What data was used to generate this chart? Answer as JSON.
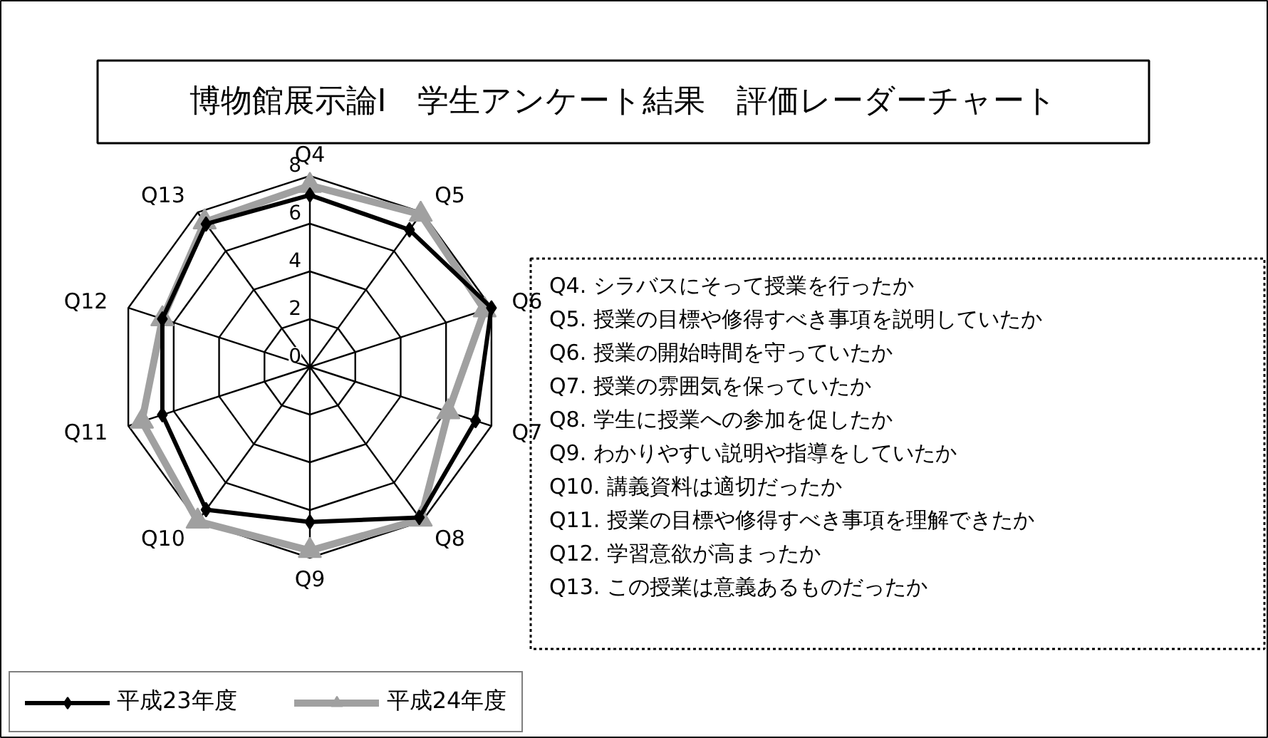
{
  "chart_data": {
    "type": "radar",
    "title": "博物館展示論Ⅰ　学生アンケート結果　評価レーダーチャート",
    "categories": [
      "Q4",
      "Q5",
      "Q6",
      "Q7",
      "Q8",
      "Q9",
      "Q10",
      "Q11",
      "Q12",
      "Q13"
    ],
    "series": [
      {
        "name": "平成23年度",
        "color": "#000000",
        "marker": "diamond",
        "values": [
          7.2,
          7.1,
          8.0,
          7.3,
          7.8,
          6.5,
          7.4,
          6.5,
          6.5,
          7.4
        ]
      },
      {
        "name": "平成24年度",
        "color": "#a0a0a0",
        "marker": "triangle",
        "values": [
          7.6,
          7.9,
          7.7,
          6.1,
          7.9,
          7.7,
          8.0,
          7.4,
          6.5,
          7.5
        ]
      }
    ],
    "ylim": [
      0,
      8
    ],
    "yticks": [
      0,
      2,
      4,
      6,
      8
    ],
    "grid": true,
    "legend": "bottom left",
    "annotations": [
      "Q4. シラバスにそって授業を行ったか",
      "Q5. 授業の目標や修得すべき事項を説明していたか",
      "Q6. 授業の開始時間を守っていたか",
      "Q7. 授業の雰囲気を保っていたか",
      "Q8. 学生に授業への参加を促したか",
      "Q9. わかりやすい説明や指導をしていたか",
      "Q10. 講義資料は適切だったか",
      "Q11. 授業の目標や修得すべき事項を理解できたか",
      "Q12. 学習意欲が高まったか",
      "Q13. この授業は意義あるものだったか"
    ]
  }
}
